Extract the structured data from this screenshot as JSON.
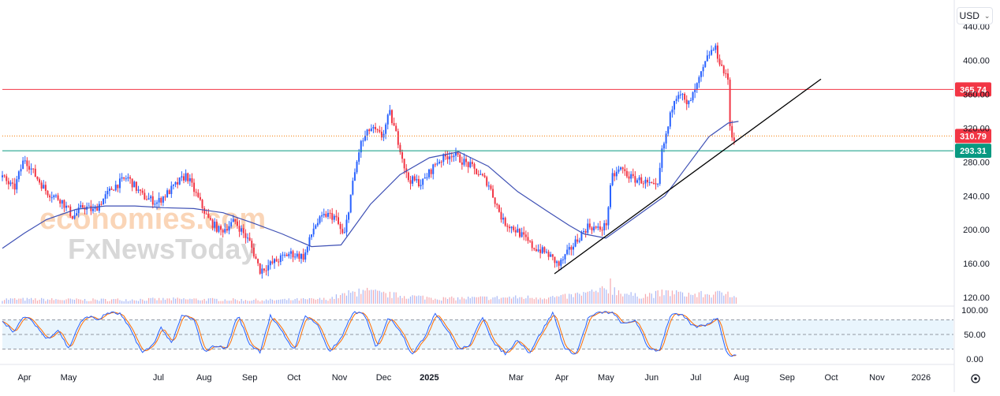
{
  "currency": {
    "label": "USD",
    "icon": "chevron-down-icon"
  },
  "watermark": {
    "line1": "economies.com",
    "line2": "FxNewsToday"
  },
  "colors": {
    "up": "#2962ff",
    "down": "#f23645",
    "ma": "#3f51b5",
    "trend": "#000000",
    "resistance": "#f23645",
    "support": "#089981",
    "dotted": "#f57c00",
    "stoch_k": "#2962ff",
    "stoch_d": "#ff6d00",
    "band": "#e3f2fd"
  },
  "chart_data": [
    {
      "type": "candlestick",
      "price_ticks": [
        "440.00",
        "400.00",
        "360.00",
        "320.00",
        "280.00",
        "240.00",
        "200.00",
        "160.00",
        "120.00"
      ],
      "price_tick_values": [
        440,
        400,
        360,
        320,
        280,
        240,
        200,
        160,
        120
      ],
      "ylim": [
        120,
        450
      ],
      "time_labels": [
        "Apr",
        "May",
        "Jul",
        "Aug",
        "Sep",
        "Oct",
        "Nov",
        "Dec",
        "2025",
        "Mar",
        "Apr",
        "May",
        "Jun",
        "Jul",
        "Aug",
        "Sep",
        "Oct",
        "Nov",
        "2026"
      ],
      "time_label_days": [
        15,
        45,
        106,
        137,
        168,
        198,
        229,
        259,
        290,
        349,
        380,
        410,
        441,
        471,
        502,
        533,
        563,
        594,
        624
      ],
      "x_domain_days": [
        0,
        646
      ],
      "price_levels": [
        {
          "label": "365.74",
          "value": 365.74,
          "kind": "resistance"
        },
        {
          "label": "310.79",
          "value": 310.79,
          "kind": "current-price"
        },
        {
          "label": "293.31",
          "value": 293.31,
          "kind": "support"
        }
      ],
      "trendline": {
        "from": {
          "day": 375,
          "price": 148
        },
        "to": {
          "day": 556,
          "price": 378
        }
      },
      "price_keypoints": [
        {
          "d": 0,
          "p": 262
        },
        {
          "d": 8,
          "p": 248
        },
        {
          "d": 15,
          "p": 285
        },
        {
          "d": 22,
          "p": 265
        },
        {
          "d": 30,
          "p": 245
        },
        {
          "d": 40,
          "p": 235
        },
        {
          "d": 48,
          "p": 215
        },
        {
          "d": 55,
          "p": 228
        },
        {
          "d": 62,
          "p": 222
        },
        {
          "d": 75,
          "p": 250
        },
        {
          "d": 85,
          "p": 262
        },
        {
          "d": 95,
          "p": 240
        },
        {
          "d": 105,
          "p": 232
        },
        {
          "d": 115,
          "p": 248
        },
        {
          "d": 125,
          "p": 265
        },
        {
          "d": 132,
          "p": 240
        },
        {
          "d": 140,
          "p": 212
        },
        {
          "d": 148,
          "p": 198
        },
        {
          "d": 158,
          "p": 210
        },
        {
          "d": 168,
          "p": 185
        },
        {
          "d": 175,
          "p": 152
        },
        {
          "d": 185,
          "p": 162
        },
        {
          "d": 195,
          "p": 172
        },
        {
          "d": 205,
          "p": 168
        },
        {
          "d": 212,
          "p": 205
        },
        {
          "d": 220,
          "p": 218
        },
        {
          "d": 226,
          "p": 215
        },
        {
          "d": 232,
          "p": 190
        },
        {
          "d": 237,
          "p": 245
        },
        {
          "d": 243,
          "p": 300
        },
        {
          "d": 250,
          "p": 320
        },
        {
          "d": 258,
          "p": 310
        },
        {
          "d": 263,
          "p": 338
        },
        {
          "d": 270,
          "p": 298
        },
        {
          "d": 275,
          "p": 260
        },
        {
          "d": 285,
          "p": 255
        },
        {
          "d": 295,
          "p": 280
        },
        {
          "d": 305,
          "p": 290
        },
        {
          "d": 318,
          "p": 275
        },
        {
          "d": 330,
          "p": 255
        },
        {
          "d": 340,
          "p": 210
        },
        {
          "d": 350,
          "p": 198
        },
        {
          "d": 360,
          "p": 180
        },
        {
          "d": 370,
          "p": 172
        },
        {
          "d": 378,
          "p": 158
        },
        {
          "d": 385,
          "p": 175
        },
        {
          "d": 392,
          "p": 192
        },
        {
          "d": 398,
          "p": 205
        },
        {
          "d": 405,
          "p": 200
        },
        {
          "d": 410,
          "p": 205
        },
        {
          "d": 414,
          "p": 262
        },
        {
          "d": 420,
          "p": 272
        },
        {
          "d": 428,
          "p": 260
        },
        {
          "d": 435,
          "p": 258
        },
        {
          "d": 440,
          "p": 252
        },
        {
          "d": 445,
          "p": 248
        },
        {
          "d": 448,
          "p": 292
        },
        {
          "d": 452,
          "p": 320
        },
        {
          "d": 456,
          "p": 355
        },
        {
          "d": 460,
          "p": 365
        },
        {
          "d": 465,
          "p": 345
        },
        {
          "d": 470,
          "p": 362
        },
        {
          "d": 475,
          "p": 385
        },
        {
          "d": 480,
          "p": 408
        },
        {
          "d": 484,
          "p": 415
        },
        {
          "d": 488,
          "p": 395
        },
        {
          "d": 492,
          "p": 378
        },
        {
          "d": 493,
          "p": 378
        },
        {
          "d": 494,
          "p": 325
        },
        {
          "d": 496,
          "p": 310
        },
        {
          "d": 499,
          "p": 300
        }
      ],
      "moving_average": [
        {
          "d": 0,
          "p": 178
        },
        {
          "d": 15,
          "p": 196
        },
        {
          "d": 30,
          "p": 212
        },
        {
          "d": 50,
          "p": 224
        },
        {
          "d": 70,
          "p": 228
        },
        {
          "d": 90,
          "p": 228
        },
        {
          "d": 110,
          "p": 226
        },
        {
          "d": 130,
          "p": 225
        },
        {
          "d": 150,
          "p": 220
        },
        {
          "d": 170,
          "p": 208
        },
        {
          "d": 190,
          "p": 195
        },
        {
          "d": 210,
          "p": 180
        },
        {
          "d": 230,
          "p": 182
        },
        {
          "d": 250,
          "p": 230
        },
        {
          "d": 270,
          "p": 265
        },
        {
          "d": 290,
          "p": 285
        },
        {
          "d": 310,
          "p": 292
        },
        {
          "d": 330,
          "p": 275
        },
        {
          "d": 350,
          "p": 245
        },
        {
          "d": 370,
          "p": 222
        },
        {
          "d": 385,
          "p": 205
        },
        {
          "d": 395,
          "p": 195
        },
        {
          "d": 410,
          "p": 190
        },
        {
          "d": 430,
          "p": 215
        },
        {
          "d": 450,
          "p": 240
        },
        {
          "d": 465,
          "p": 275
        },
        {
          "d": 480,
          "p": 310
        },
        {
          "d": 493,
          "p": 326
        },
        {
          "d": 500,
          "p": 328
        }
      ],
      "volume_scale_max": 100,
      "volume_keypoints": [
        {
          "d": 0,
          "v": 18
        },
        {
          "d": 60,
          "v": 15
        },
        {
          "d": 120,
          "v": 18
        },
        {
          "d": 180,
          "v": 14
        },
        {
          "d": 220,
          "v": 18
        },
        {
          "d": 236,
          "v": 40
        },
        {
          "d": 245,
          "v": 50
        },
        {
          "d": 260,
          "v": 36
        },
        {
          "d": 300,
          "v": 20
        },
        {
          "d": 340,
          "v": 24
        },
        {
          "d": 380,
          "v": 26
        },
        {
          "d": 414,
          "v": 56
        },
        {
          "d": 430,
          "v": 30
        },
        {
          "d": 456,
          "v": 45
        },
        {
          "d": 470,
          "v": 35
        },
        {
          "d": 494,
          "v": 40
        },
        {
          "d": 499,
          "v": 30
        }
      ],
      "volume_spikes": [
        {
          "d": 242,
          "v": 60
        },
        {
          "d": 246,
          "v": 52
        },
        {
          "d": 413,
          "v": 100
        },
        {
          "d": 455,
          "v": 52
        },
        {
          "d": 460,
          "v": 48
        },
        {
          "d": 493,
          "v": 48
        }
      ]
    },
    {
      "type": "line",
      "indicator": "stochastic",
      "ylim": [
        0,
        100
      ],
      "ticks": [
        "100.00",
        "50.00",
        "0.00"
      ],
      "tick_values": [
        100,
        50,
        0
      ],
      "bands": [
        20,
        50,
        80
      ],
      "k_keypoints": [
        {
          "d": 0,
          "v": 78
        },
        {
          "d": 8,
          "v": 55
        },
        {
          "d": 15,
          "v": 88
        },
        {
          "d": 22,
          "v": 72
        },
        {
          "d": 30,
          "v": 40
        },
        {
          "d": 38,
          "v": 60
        },
        {
          "d": 45,
          "v": 20
        },
        {
          "d": 52,
          "v": 70
        },
        {
          "d": 58,
          "v": 88
        },
        {
          "d": 65,
          "v": 80
        },
        {
          "d": 72,
          "v": 95
        },
        {
          "d": 80,
          "v": 92
        },
        {
          "d": 88,
          "v": 55
        },
        {
          "d": 95,
          "v": 12
        },
        {
          "d": 102,
          "v": 28
        },
        {
          "d": 108,
          "v": 65
        },
        {
          "d": 115,
          "v": 30
        },
        {
          "d": 122,
          "v": 90
        },
        {
          "d": 130,
          "v": 80
        },
        {
          "d": 137,
          "v": 15
        },
        {
          "d": 145,
          "v": 28
        },
        {
          "d": 152,
          "v": 20
        },
        {
          "d": 160,
          "v": 90
        },
        {
          "d": 168,
          "v": 30
        },
        {
          "d": 175,
          "v": 15
        },
        {
          "d": 182,
          "v": 88
        },
        {
          "d": 190,
          "v": 55
        },
        {
          "d": 198,
          "v": 18
        },
        {
          "d": 206,
          "v": 90
        },
        {
          "d": 214,
          "v": 70
        },
        {
          "d": 222,
          "v": 15
        },
        {
          "d": 230,
          "v": 40
        },
        {
          "d": 238,
          "v": 95
        },
        {
          "d": 246,
          "v": 92
        },
        {
          "d": 254,
          "v": 20
        },
        {
          "d": 262,
          "v": 85
        },
        {
          "d": 270,
          "v": 60
        },
        {
          "d": 278,
          "v": 10
        },
        {
          "d": 286,
          "v": 40
        },
        {
          "d": 294,
          "v": 95
        },
        {
          "d": 302,
          "v": 60
        },
        {
          "d": 310,
          "v": 18
        },
        {
          "d": 318,
          "v": 30
        },
        {
          "d": 326,
          "v": 88
        },
        {
          "d": 334,
          "v": 30
        },
        {
          "d": 342,
          "v": 10
        },
        {
          "d": 350,
          "v": 40
        },
        {
          "d": 358,
          "v": 12
        },
        {
          "d": 366,
          "v": 55
        },
        {
          "d": 374,
          "v": 95
        },
        {
          "d": 382,
          "v": 20
        },
        {
          "d": 390,
          "v": 10
        },
        {
          "d": 398,
          "v": 85
        },
        {
          "d": 406,
          "v": 95
        },
        {
          "d": 414,
          "v": 95
        },
        {
          "d": 422,
          "v": 70
        },
        {
          "d": 430,
          "v": 80
        },
        {
          "d": 438,
          "v": 25
        },
        {
          "d": 446,
          "v": 15
        },
        {
          "d": 454,
          "v": 92
        },
        {
          "d": 462,
          "v": 88
        },
        {
          "d": 470,
          "v": 65
        },
        {
          "d": 478,
          "v": 70
        },
        {
          "d": 486,
          "v": 85
        },
        {
          "d": 492,
          "v": 10
        },
        {
          "d": 499,
          "v": 5
        }
      ]
    }
  ]
}
